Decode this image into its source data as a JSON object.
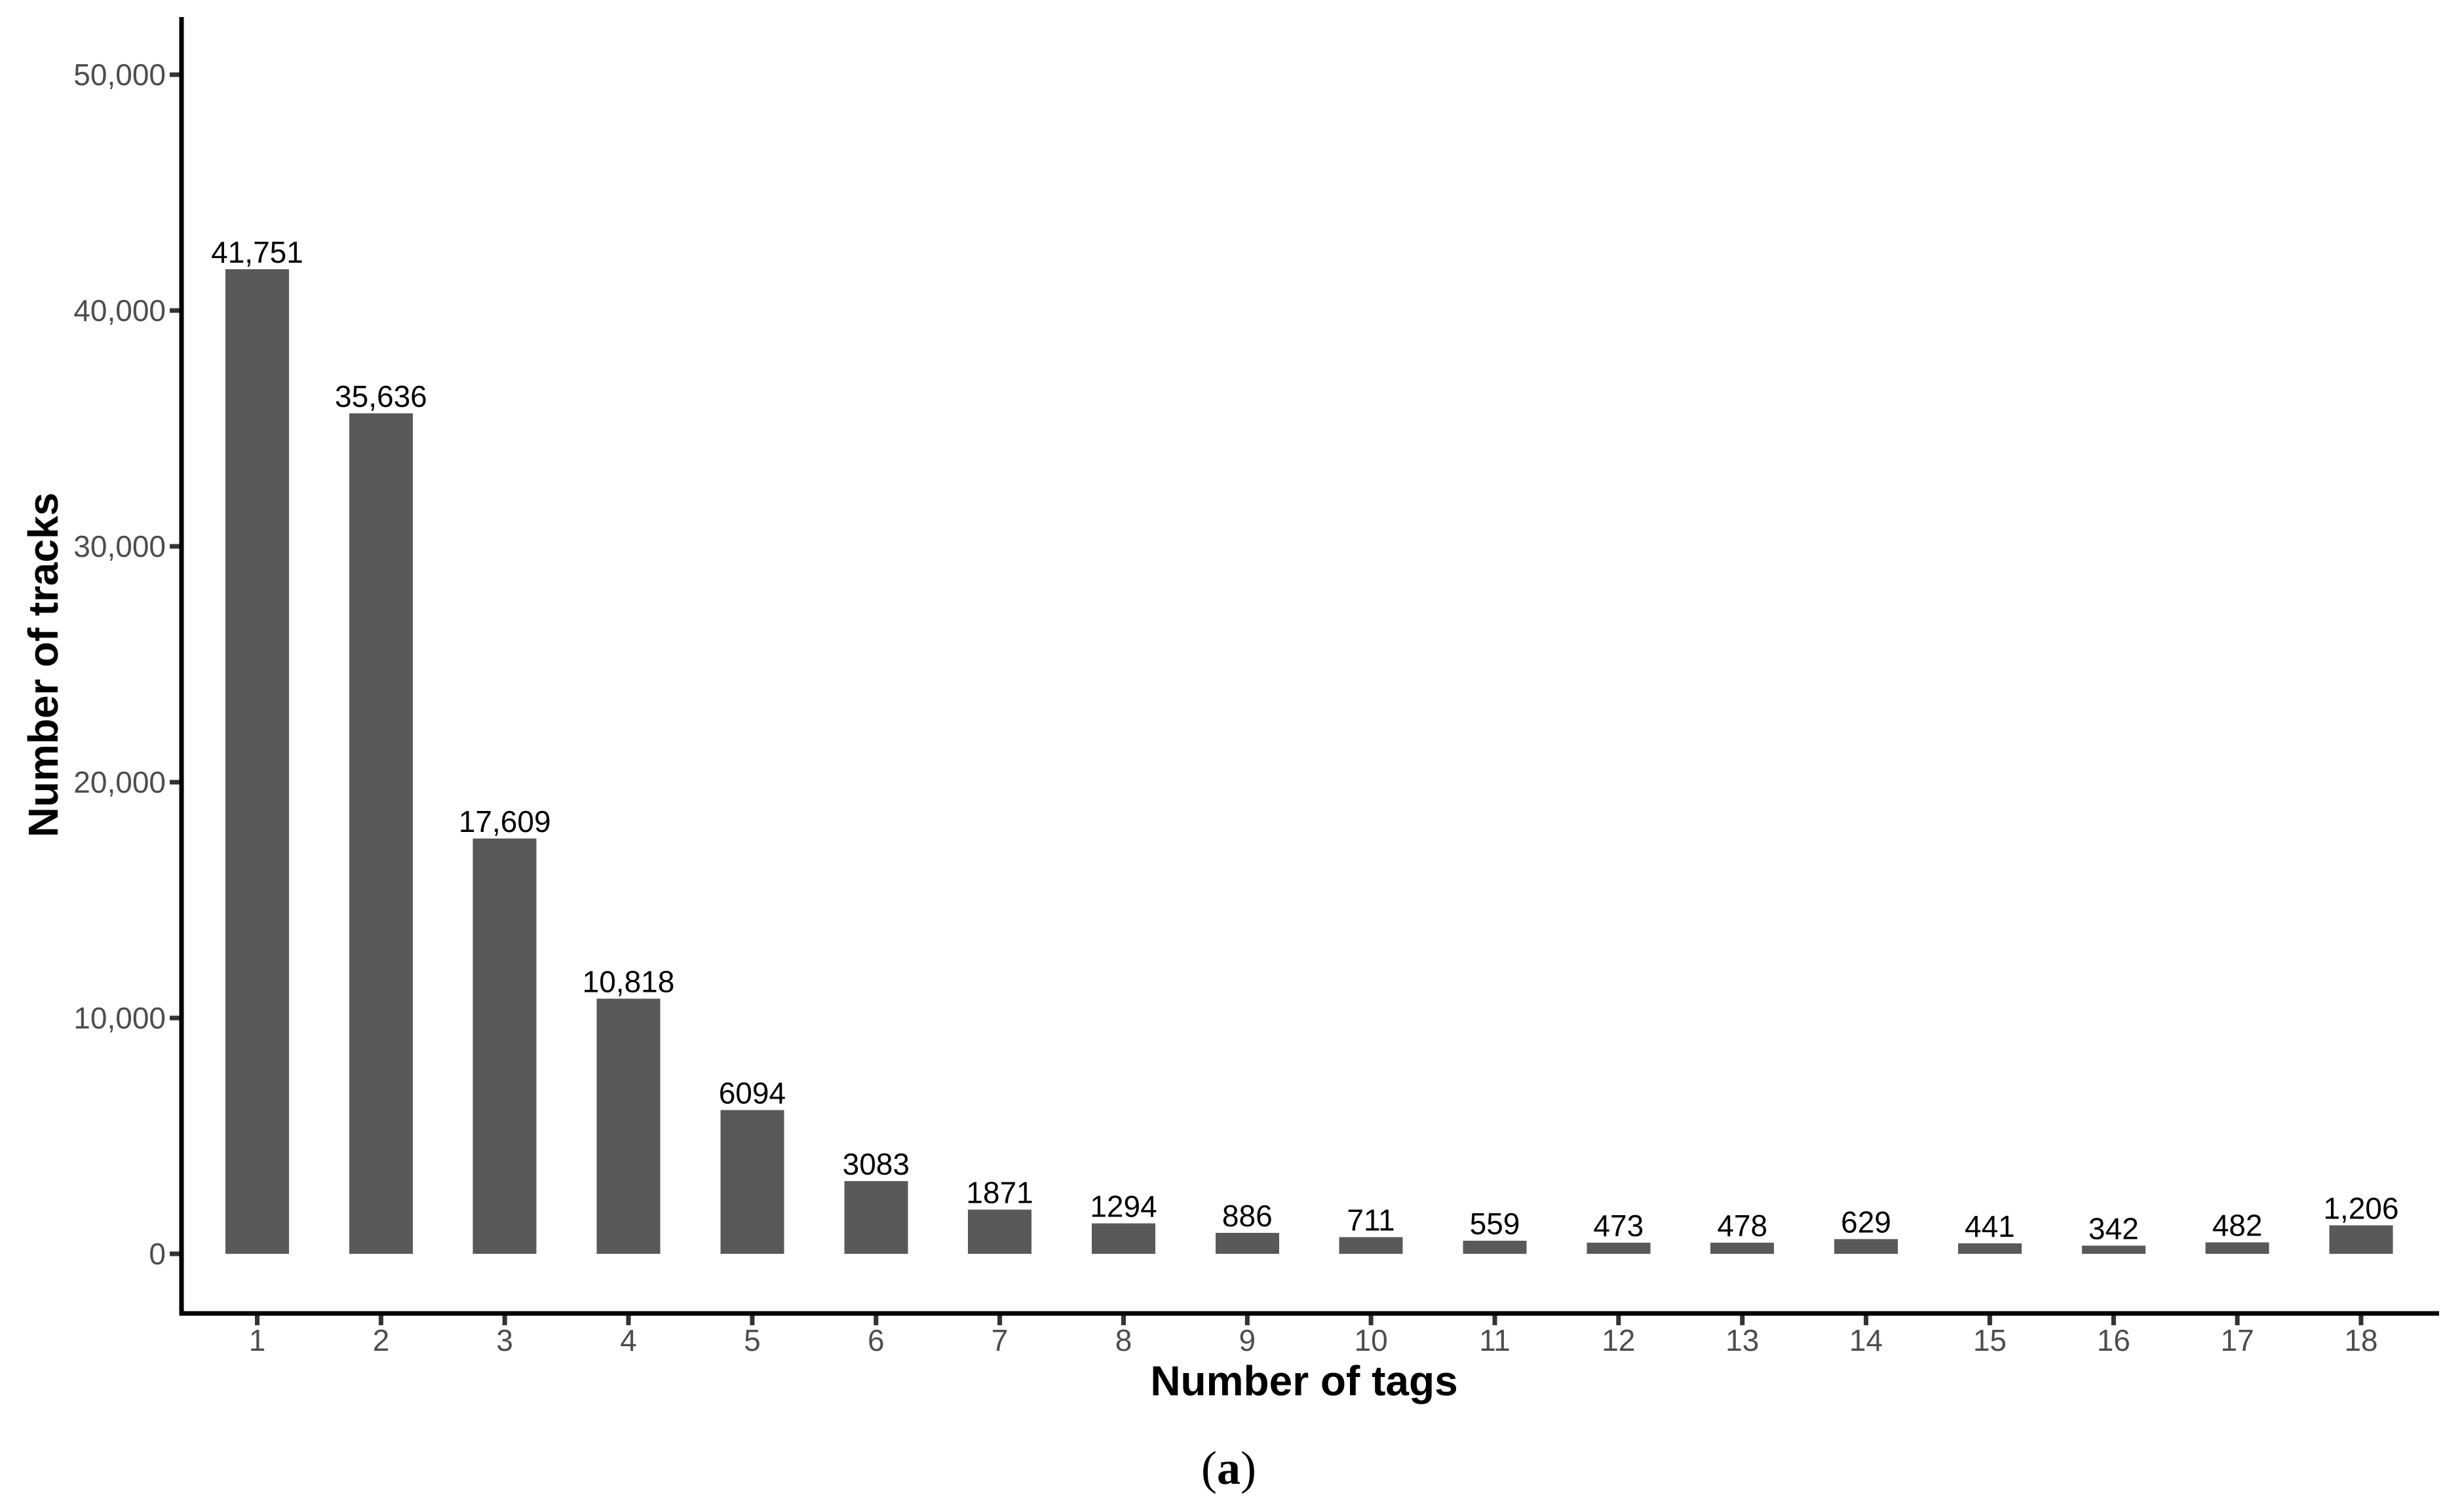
{
  "page": {
    "background": "#ffffff"
  },
  "caption": {
    "open": "(",
    "letter": "a",
    "close": ")"
  },
  "chart_data": {
    "type": "bar",
    "title": "",
    "xlabel": "Number of tags",
    "ylabel": "Number of tracks",
    "categories": [
      "1",
      "2",
      "3",
      "4",
      "5",
      "6",
      "7",
      "8",
      "9",
      "10",
      "11",
      "12",
      "13",
      "14",
      "15",
      "16",
      "17",
      "18"
    ],
    "values": [
      41751,
      35636,
      17609,
      10818,
      6094,
      3083,
      1871,
      1294,
      886,
      711,
      559,
      473,
      478,
      629,
      441,
      342,
      482,
      1206
    ],
    "bar_value_labels": [
      "41,751",
      "35,636",
      "17,609",
      "10,818",
      "6094",
      "3083",
      "1871",
      "1294",
      "886",
      "711",
      "559",
      "473",
      "478",
      "629",
      "441",
      "342",
      "482",
      "1,206"
    ],
    "y_ticks": [
      0,
      10000,
      20000,
      30000,
      40000,
      50000
    ],
    "y_tick_labels": [
      "0",
      "10,000",
      "20,000",
      "30,000",
      "40,000",
      "50,000"
    ],
    "ylim": [
      0,
      52500
    ],
    "grid": false,
    "legend": false,
    "axes_shown": [
      "left",
      "bottom"
    ],
    "colors": {
      "bar": "#595959",
      "axis_line": "#000000",
      "tick_mark": "#333333",
      "tick_label": "#4d4d4d",
      "value_label": "#000000",
      "axis_title": "#000000",
      "caption": "#000000"
    }
  }
}
